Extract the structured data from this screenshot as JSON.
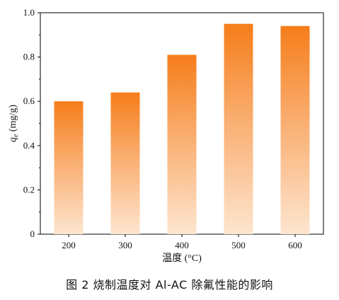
{
  "chart_data": {
    "type": "bar",
    "categories": [
      "200",
      "300",
      "400",
      "500",
      "600"
    ],
    "values": [
      0.6,
      0.64,
      0.81,
      0.95,
      0.94
    ],
    "xlabel": "温度 (°C)",
    "ylabel_var": "q",
    "ylabel_sub": "e",
    "ylabel_unit": " (mg/g)",
    "ylim": [
      0,
      1.0
    ],
    "yticks": [
      "0",
      "0.2",
      "0.4",
      "0.6",
      "0.8",
      "1.0"
    ],
    "grid": false,
    "bar_color_top": "#f57d1a",
    "bar_color_bottom": "#fde5cf"
  },
  "caption": "图 2  烧制温度对 Al-AC 除氟性能的影响"
}
